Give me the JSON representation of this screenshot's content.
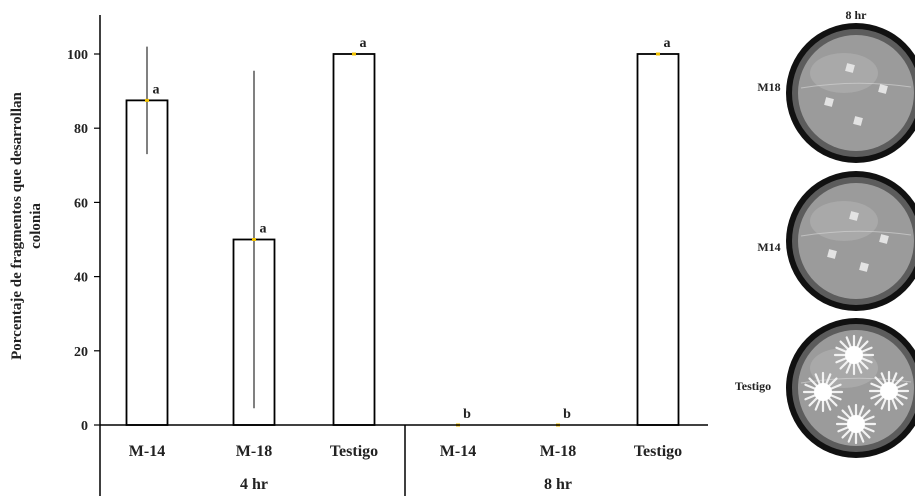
{
  "chart_data": {
    "type": "bar",
    "ylabel": [
      "Porcentaje de fragmentos que desarrollan",
      "colonia"
    ],
    "ylim": [
      0,
      100
    ],
    "yticks": [
      0,
      20,
      40,
      60,
      80,
      100
    ],
    "categories": [
      "M-14",
      "M-18",
      "Testigo",
      "M-14",
      "M-18",
      "Testigo"
    ],
    "groups": [
      {
        "label": "4 hr",
        "count": 3
      },
      {
        "label": "8 hr",
        "count": 3
      }
    ],
    "values": [
      87.5,
      50,
      100,
      0,
      0,
      100
    ],
    "error_low": [
      73,
      4.5,
      100,
      0,
      0,
      100
    ],
    "error_high": [
      102,
      95.5,
      100,
      0,
      0,
      100
    ],
    "letters": [
      "a",
      "a",
      "a",
      "b",
      "b",
      "a"
    ],
    "colors": {
      "bar_fill": "#ffffff",
      "bar_stroke": "#000000",
      "mean_marker": "#f2c200",
      "text": "#222222"
    }
  },
  "photos": {
    "header": "8 hr",
    "plates": [
      {
        "label": "M18",
        "treatment": "M18",
        "growth": "fragments"
      },
      {
        "label": "M14",
        "treatment": "M14",
        "growth": "fragments"
      },
      {
        "label": "Testigo",
        "treatment": "Testigo",
        "growth": "colonies"
      }
    ]
  }
}
